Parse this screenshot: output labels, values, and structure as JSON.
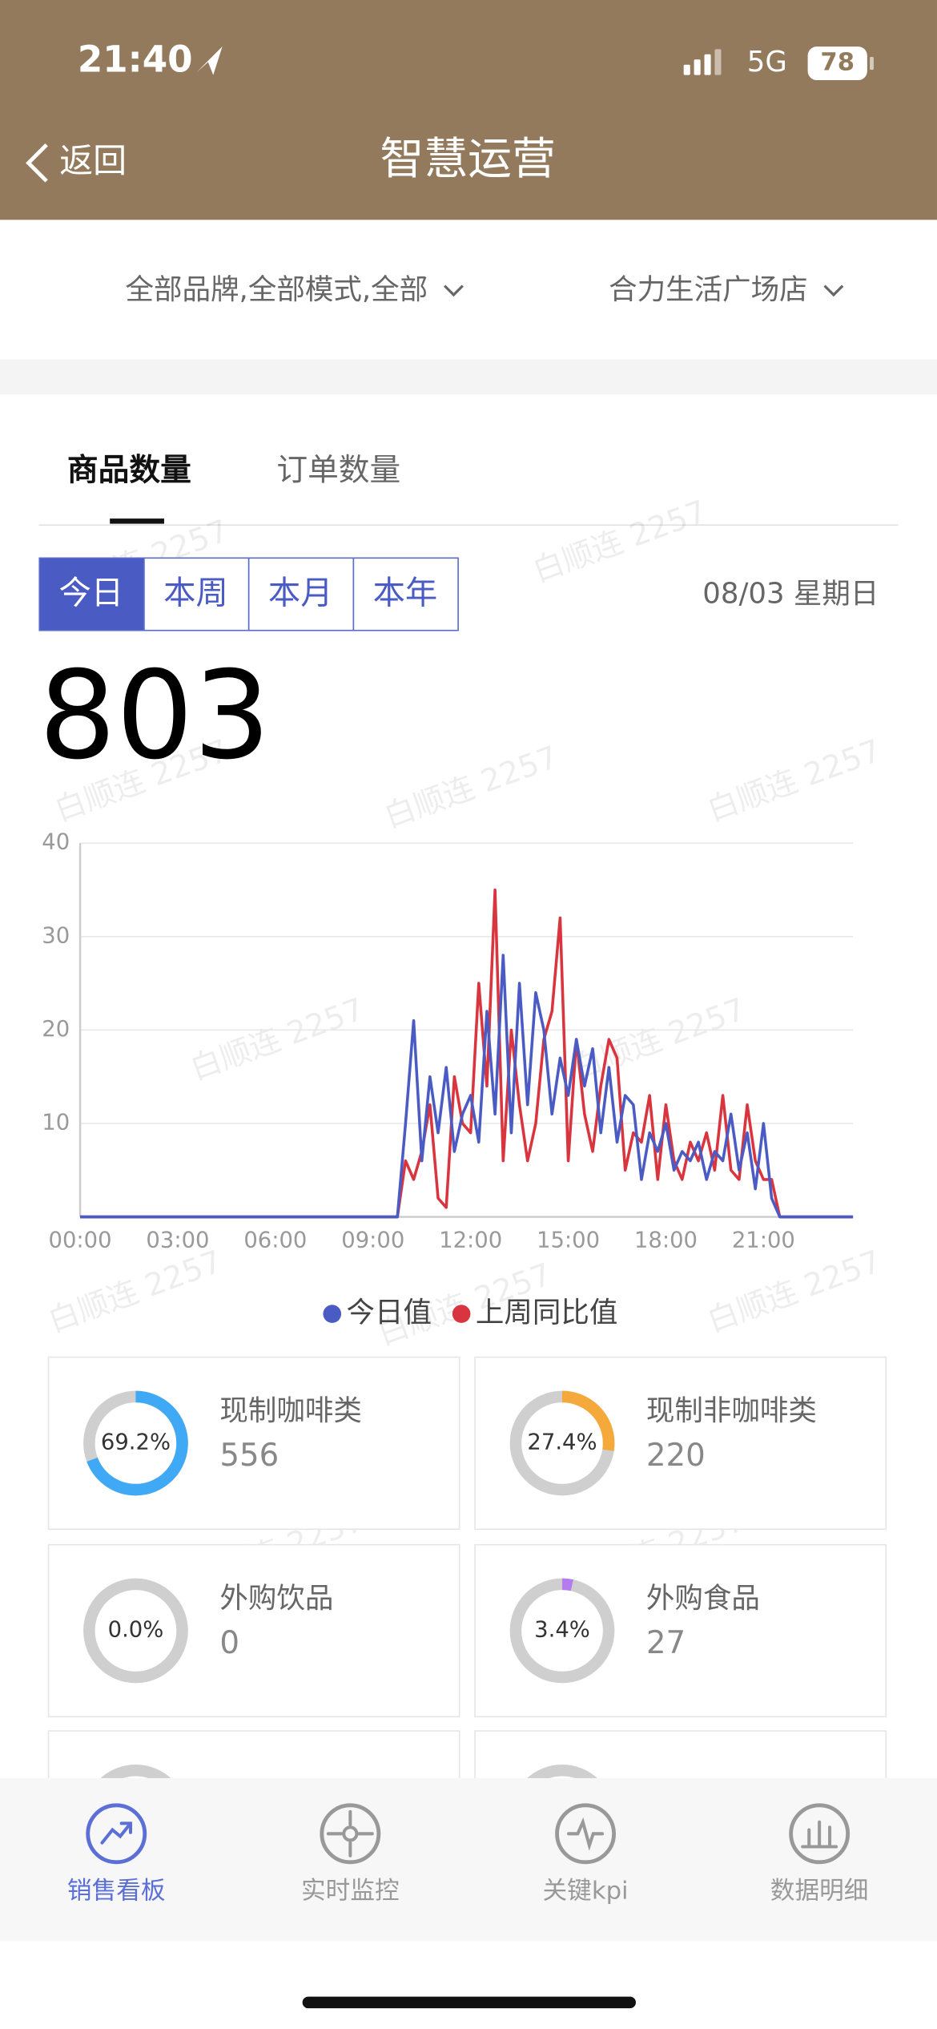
{
  "status_bar": {
    "time": "21:40",
    "network": "5G",
    "battery": "78"
  },
  "header": {
    "back": "返回",
    "title": "智慧运营"
  },
  "filters": [
    "全部品牌,全部模式,全部",
    "合力生活广场店"
  ],
  "tabs": [
    {
      "label": "商品数量",
      "active": true
    },
    {
      "label": "订单数量",
      "active": false
    }
  ],
  "periods": [
    {
      "label": "今日",
      "active": true
    },
    {
      "label": "本周",
      "active": false
    },
    {
      "label": "本月",
      "active": false
    },
    {
      "label": "本年",
      "active": false
    }
  ],
  "date": "08/03 星期日",
  "total": "803",
  "watermark": "白顺连 2257",
  "chart_data": {
    "type": "line",
    "categories": [
      "00:00",
      null,
      null,
      null,
      null,
      null,
      null,
      null,
      null,
      null,
      null,
      null,
      "03:00",
      null,
      null,
      null,
      null,
      null,
      null,
      null,
      null,
      null,
      null,
      null,
      "06:00",
      null,
      null,
      null,
      null,
      null,
      null,
      null,
      null,
      null,
      null,
      null,
      "09:00",
      null,
      null,
      null,
      null,
      null,
      null,
      null,
      null,
      null,
      null,
      null,
      "12:00",
      null,
      null,
      null,
      null,
      null,
      null,
      null,
      null,
      null,
      null,
      null,
      "15:00",
      null,
      null,
      null,
      null,
      null,
      null,
      null,
      null,
      null,
      null,
      null,
      "18:00",
      null,
      null,
      null,
      null,
      null,
      null,
      null,
      null,
      null,
      null,
      null,
      "21:00",
      null,
      null,
      null,
      null,
      null,
      null,
      null,
      null,
      null,
      null,
      null
    ],
    "series": [
      {
        "name": "今日值",
        "color": "#4a5bc4",
        "values": [
          0,
          0,
          0,
          0,
          0,
          0,
          0,
          0,
          0,
          0,
          0,
          0,
          0,
          0,
          0,
          0,
          0,
          0,
          0,
          0,
          0,
          0,
          0,
          0,
          0,
          0,
          0,
          0,
          0,
          0,
          0,
          0,
          0,
          0,
          0,
          0,
          0,
          0,
          0,
          0,
          10,
          21,
          6,
          15,
          9,
          16,
          7,
          11,
          13,
          8,
          22,
          11,
          28,
          9,
          25,
          12,
          24,
          20,
          11,
          17,
          13,
          19,
          14,
          18,
          9,
          16,
          8,
          13,
          12,
          4,
          9,
          7,
          10,
          5,
          7,
          6,
          8,
          4,
          7,
          6,
          11,
          5,
          9,
          3,
          10,
          2,
          0,
          0,
          0,
          0,
          0,
          0,
          0,
          0,
          0,
          0
        ]
      },
      {
        "name": "上周同比值",
        "color": "#d9353f",
        "values": [
          0,
          0,
          0,
          0,
          0,
          0,
          0,
          0,
          0,
          0,
          0,
          0,
          0,
          0,
          0,
          0,
          0,
          0,
          0,
          0,
          0,
          0,
          0,
          0,
          0,
          0,
          0,
          0,
          0,
          0,
          0,
          0,
          0,
          0,
          0,
          0,
          0,
          0,
          0,
          0,
          6,
          4,
          7,
          12,
          2,
          1,
          15,
          10,
          9,
          25,
          14,
          35,
          6,
          20,
          12,
          6,
          10,
          19,
          22,
          32,
          6,
          19,
          11,
          7,
          14,
          19,
          17,
          5,
          9,
          8,
          13,
          4,
          12,
          6,
          4,
          8,
          6,
          9,
          5,
          13,
          5,
          4,
          12,
          6,
          4,
          4,
          0,
          0,
          0,
          0,
          0,
          0,
          0,
          0,
          0,
          0
        ]
      }
    ],
    "ylim": [
      0,
      40
    ],
    "yticks": [
      10,
      20,
      30,
      40
    ],
    "grid": true
  },
  "cards": [
    {
      "name": "现制咖啡类",
      "percent": 69.2,
      "percent_label": "69.2%",
      "count": 556,
      "color": "#3fa9f5"
    },
    {
      "name": "现制非咖啡类",
      "percent": 27.4,
      "percent_label": "27.4%",
      "count": 220,
      "color": "#f5a93a"
    },
    {
      "name": "外购饮品",
      "percent": 0.0,
      "percent_label": "0.0%",
      "count": 0,
      "color": "#9aa3e0"
    },
    {
      "name": "外购食品",
      "percent": 3.4,
      "percent_label": "3.4%",
      "count": 27,
      "color": "#b57cf0"
    }
  ],
  "bottom_nav": [
    {
      "label": "销售看板",
      "active": true
    },
    {
      "label": "实时监控",
      "active": false
    },
    {
      "label": "关键kpi",
      "active": false
    },
    {
      "label": "数据明细",
      "active": false
    }
  ]
}
